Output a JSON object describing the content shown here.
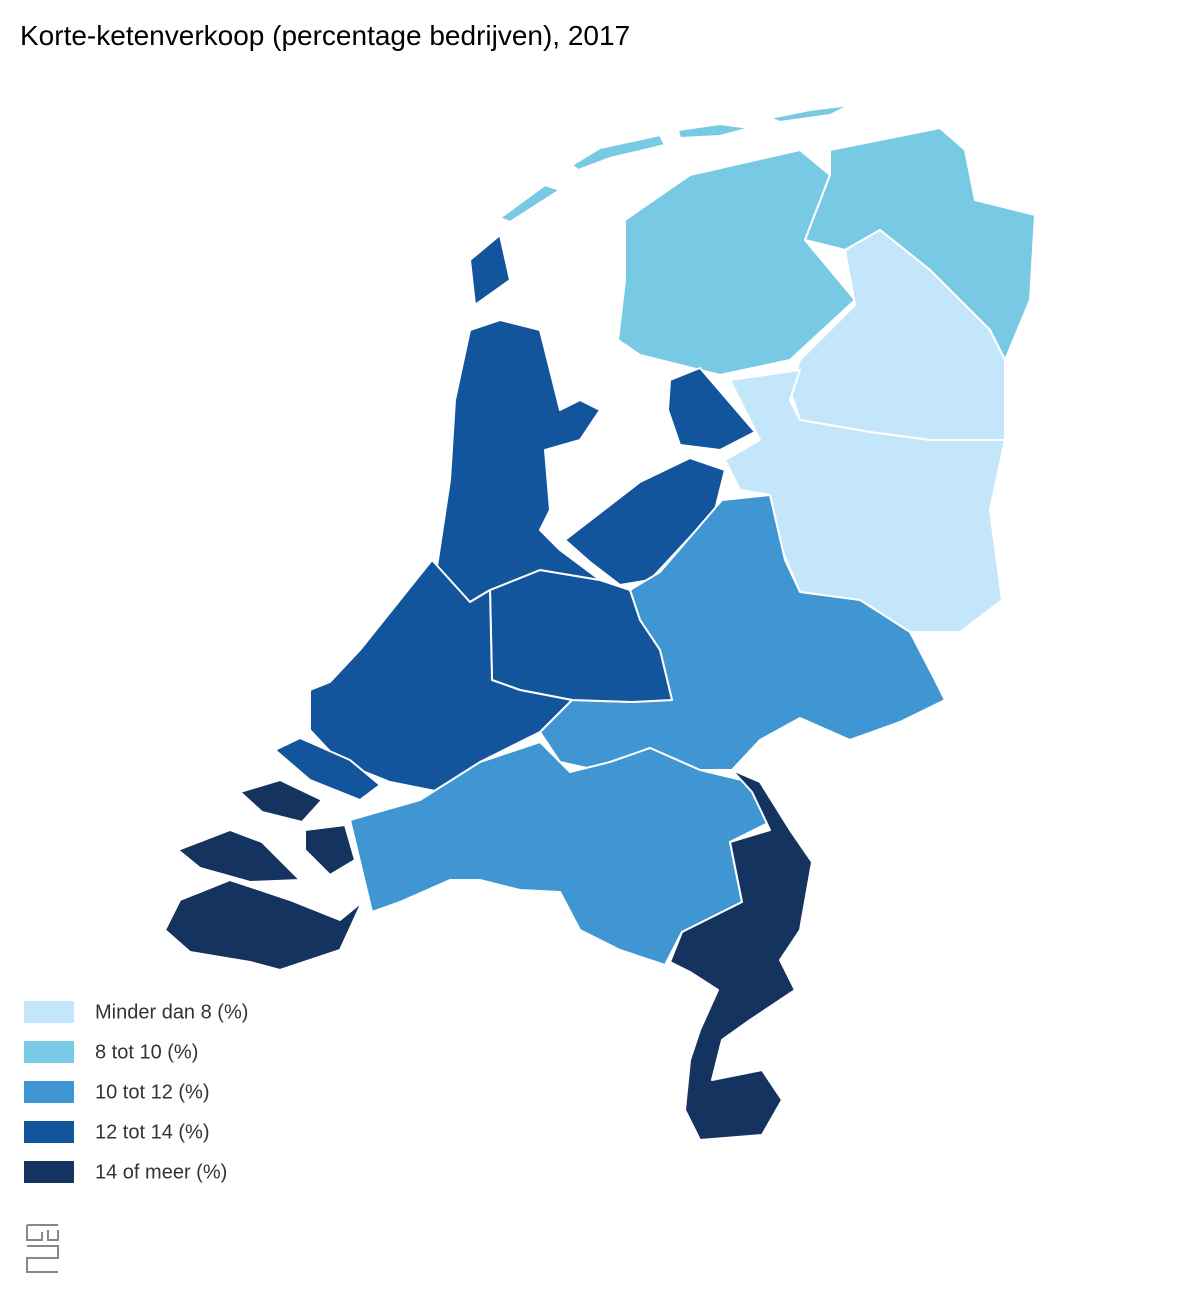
{
  "title": "Korte-ketenverkoop (percentage bedrijven), 2017",
  "legend": {
    "items": [
      {
        "label": "Minder dan 8 (%)",
        "color": "#c4e6fb"
      },
      {
        "label": "8 tot 10 (%)",
        "color": "#78c9e3"
      },
      {
        "label": "10 tot 12 (%)",
        "color": "#3f96d2"
      },
      {
        "label": "12 tot 14 (%)",
        "color": "#13559c"
      },
      {
        "label": "14 of meer (%)",
        "color": "#15335f"
      }
    ]
  }
}
